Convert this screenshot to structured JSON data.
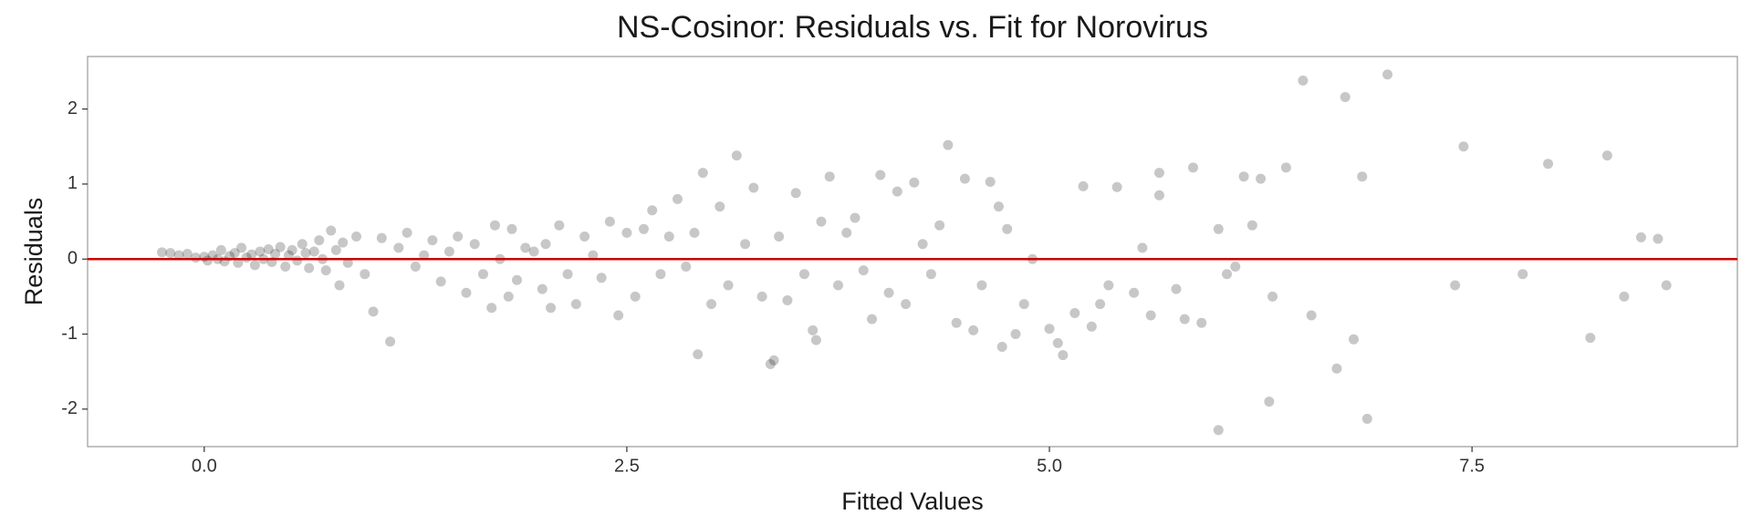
{
  "chart_data": {
    "type": "scatter",
    "title": "NS-Cosinor: Residuals vs. Fit for Norovirus",
    "x_label": "Fitted Values",
    "y_label": "Residuals",
    "xlim": [
      -0.69,
      9.07
    ],
    "ylim": [
      -2.5,
      2.7
    ],
    "xticks": [
      {
        "value": 0,
        "label": "0.0"
      },
      {
        "value": 2.5,
        "label": "2.5"
      },
      {
        "value": 5,
        "label": "5.0"
      },
      {
        "value": 7.5,
        "label": "7.5"
      }
    ],
    "yticks": [
      -2,
      -1,
      0,
      1,
      2
    ],
    "grid": false,
    "reference_line": {
      "value": 0,
      "color": "#cc0000"
    },
    "series": [
      {
        "color": "#000000",
        "x": [
          -0.25,
          -0.2,
          -0.15,
          -0.1,
          -0.05,
          0.0,
          0.02,
          0.05,
          0.08,
          0.1,
          0.12,
          0.15,
          0.18,
          0.2,
          0.22,
          0.25,
          0.28,
          0.3,
          0.33,
          0.35,
          0.38,
          0.4,
          0.42,
          0.45,
          0.48,
          0.5,
          0.52,
          0.55,
          0.58,
          0.6,
          0.62,
          0.65,
          0.68,
          0.7,
          0.72,
          0.75,
          0.78,
          0.8,
          0.82,
          0.85,
          0.9,
          0.95,
          1.0,
          1.05,
          1.1,
          1.15,
          1.2,
          1.25,
          1.3,
          1.35,
          1.4,
          1.45,
          1.5,
          1.55,
          1.6,
          1.65,
          1.7,
          1.72,
          1.75,
          1.8,
          1.82,
          1.85,
          1.9,
          1.95,
          2.0,
          2.02,
          2.05,
          2.1,
          2.15,
          2.2,
          2.25,
          2.3,
          2.35,
          2.4,
          2.45,
          2.5,
          2.55,
          2.6,
          2.65,
          2.7,
          2.75,
          2.8,
          2.85,
          2.9,
          2.92,
          2.95,
          3.0,
          3.05,
          3.1,
          3.15,
          3.2,
          3.25,
          3.3,
          3.35,
          3.37,
          3.4,
          3.45,
          3.5,
          3.55,
          3.6,
          3.62,
          3.65,
          3.7,
          3.75,
          3.8,
          3.85,
          3.9,
          3.95,
          4.0,
          4.05,
          4.1,
          4.15,
          4.2,
          4.25,
          4.3,
          4.35,
          4.4,
          4.45,
          4.5,
          4.55,
          4.6,
          4.65,
          4.7,
          4.72,
          4.75,
          4.8,
          4.85,
          4.9,
          5.0,
          5.05,
          5.08,
          5.15,
          5.2,
          5.25,
          5.3,
          5.35,
          5.4,
          5.5,
          5.55,
          5.6,
          5.65,
          5.65,
          5.75,
          5.8,
          5.85,
          5.9,
          6.0,
          6.0,
          6.05,
          6.1,
          6.15,
          6.2,
          6.25,
          6.3,
          6.32,
          6.4,
          6.5,
          6.55,
          6.7,
          6.75,
          6.8,
          6.85,
          6.88,
          7.0,
          7.45,
          7.4,
          7.8,
          7.95,
          8.2,
          8.3,
          8.4,
          8.5,
          8.6,
          8.65
        ],
        "values": [
          0.09,
          0.08,
          0.05,
          0.07,
          0.02,
          0.03,
          -0.02,
          0.05,
          0.0,
          0.12,
          -0.03,
          0.04,
          0.08,
          -0.05,
          0.15,
          0.02,
          0.06,
          -0.08,
          0.1,
          0.0,
          0.13,
          -0.04,
          0.07,
          0.16,
          -0.1,
          0.05,
          0.12,
          -0.02,
          0.2,
          0.08,
          -0.12,
          0.1,
          0.25,
          0.0,
          -0.15,
          0.38,
          0.12,
          -0.35,
          0.22,
          -0.05,
          0.3,
          -0.2,
          -0.7,
          0.28,
          -1.1,
          0.15,
          0.35,
          -0.1,
          0.05,
          0.25,
          -0.3,
          0.1,
          0.3,
          -0.45,
          0.2,
          -0.2,
          -0.65,
          0.45,
          0.0,
          -0.5,
          0.4,
          -0.28,
          0.15,
          0.1,
          -0.4,
          0.2,
          -0.65,
          0.45,
          -0.2,
          -0.6,
          0.3,
          0.05,
          -0.25,
          0.5,
          -0.75,
          0.35,
          -0.5,
          0.4,
          0.65,
          -0.2,
          0.3,
          0.8,
          -0.1,
          0.35,
          -1.27,
          1.15,
          -0.6,
          0.7,
          -0.35,
          1.38,
          0.2,
          0.95,
          -0.5,
          -1.4,
          -1.35,
          0.3,
          -0.55,
          0.88,
          -0.2,
          -0.95,
          -1.08,
          0.5,
          1.1,
          -0.35,
          0.35,
          0.55,
          -0.15,
          -0.8,
          1.12,
          -0.45,
          0.9,
          -0.6,
          1.02,
          0.2,
          -0.2,
          0.45,
          1.52,
          -0.85,
          1.07,
          -0.95,
          -0.35,
          1.03,
          0.7,
          -1.17,
          0.4,
          -1.0,
          -0.6,
          0.0,
          -0.93,
          -1.12,
          -1.28,
          -0.72,
          0.97,
          -0.9,
          -0.6,
          -0.35,
          0.96,
          -0.45,
          0.15,
          -0.75,
          1.15,
          0.85,
          -0.4,
          -0.8,
          1.22,
          -0.85,
          -2.28,
          0.4,
          -0.2,
          -0.1,
          1.1,
          0.45,
          1.07,
          -1.9,
          -0.5,
          1.22,
          2.38,
          -0.75,
          -1.46,
          2.16,
          -1.07,
          1.1,
          -2.13,
          2.46,
          1.5,
          -0.35,
          -0.2,
          1.27,
          -1.05,
          1.38,
          -0.5,
          0.29,
          0.27,
          -0.35
        ]
      }
    ]
  }
}
